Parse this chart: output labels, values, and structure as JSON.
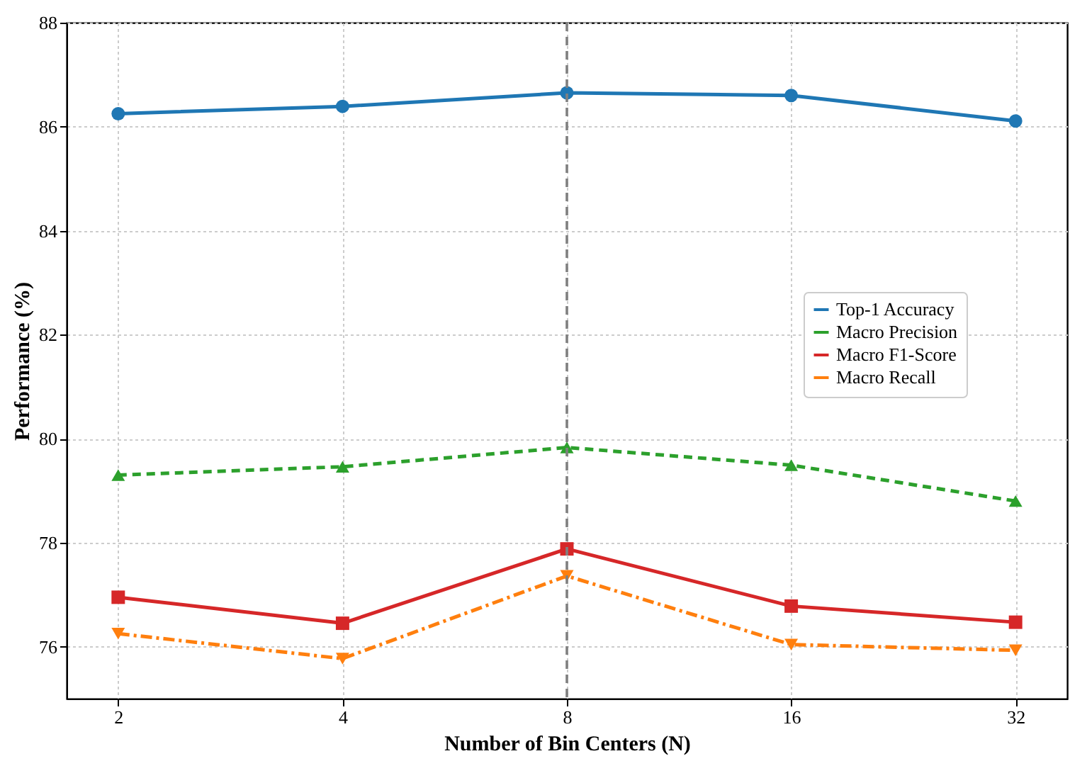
{
  "chart_data": {
    "type": "line",
    "xlabel": "Number of Bin Centers (N)",
    "ylabel": "Performance (%)",
    "categories": [
      "2",
      "4",
      "8",
      "16",
      "32"
    ],
    "series": [
      {
        "name": "Top-1 Accuracy",
        "color": "#1f77b4",
        "marker": "circle",
        "line_style": "solid",
        "values": [
          86.25,
          86.39,
          86.65,
          86.6,
          86.11
        ]
      },
      {
        "name": "Macro Precision",
        "color": "#2ca02c",
        "marker": "triangle",
        "line_style": "dashed",
        "values": [
          79.3,
          79.46,
          79.83,
          79.49,
          78.8
        ]
      },
      {
        "name": "Macro F1-Score",
        "color": "#d62728",
        "marker": "square",
        "line_style": "solid",
        "values": [
          76.95,
          76.45,
          77.88,
          76.78,
          76.47
        ]
      },
      {
        "name": "Macro Recall",
        "color": "#ff7f0e",
        "marker": "triangle-down",
        "line_style": "dashdot",
        "values": [
          76.25,
          75.77,
          77.36,
          76.04,
          75.93
        ]
      }
    ],
    "ylim": [
      75,
      88
    ],
    "yticks": [
      76,
      78,
      80,
      82,
      84,
      86,
      88
    ],
    "ref_lines": [
      {
        "axis": "x",
        "value": "8",
        "color": "#808080",
        "line_style": "dashed"
      }
    ],
    "grid": true,
    "legend": "right"
  }
}
